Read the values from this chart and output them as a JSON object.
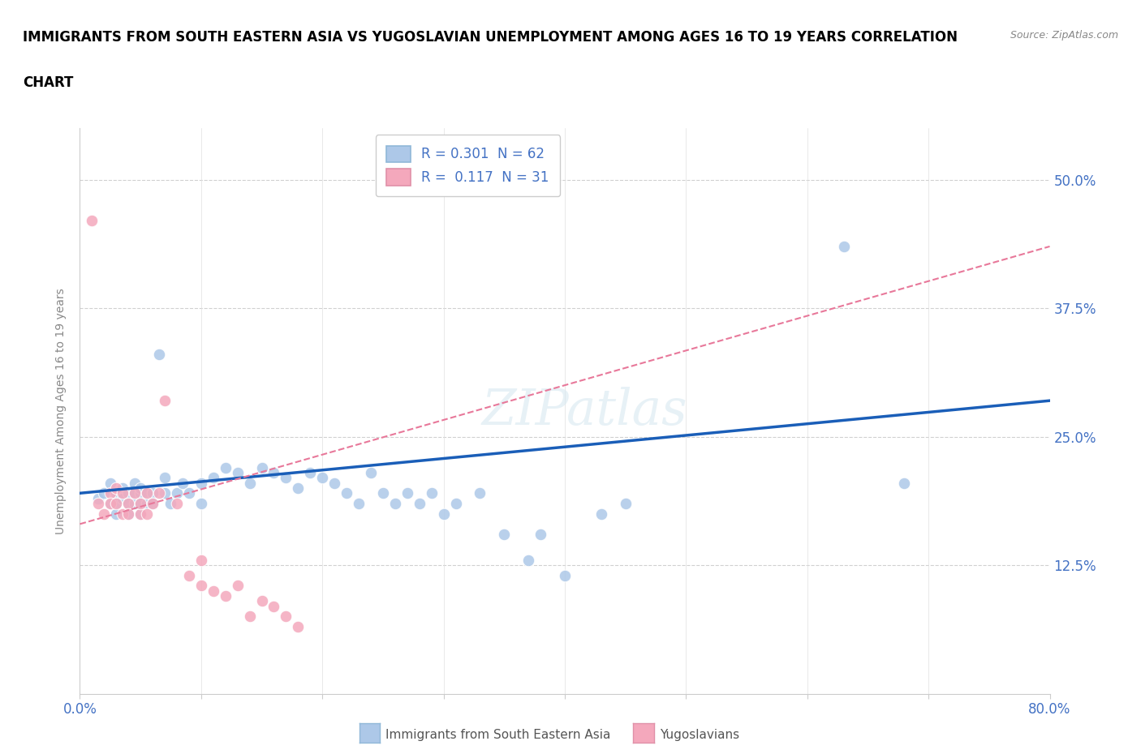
{
  "title": "IMMIGRANTS FROM SOUTH EASTERN ASIA VS YUGOSLAVIAN UNEMPLOYMENT AMONG AGES 16 TO 19 YEARS CORRELATION\nCHART",
  "source_text": "Source: ZipAtlas.com",
  "ylabel": "Unemployment Among Ages 16 to 19 years",
  "xlim": [
    0.0,
    0.8
  ],
  "ylim": [
    0.0,
    0.55
  ],
  "ytick_positions": [
    0.125,
    0.25,
    0.375,
    0.5
  ],
  "ytick_labels": [
    "12.5%",
    "25.0%",
    "37.5%",
    "50.0%"
  ],
  "blue_color": "#adc8e8",
  "pink_color": "#f4a8bc",
  "blue_line_color": "#1a5eb8",
  "pink_line_color": "#e8789a",
  "legend_line1": "R = 0.301  N = 62",
  "legend_line2": "R =  0.117  N = 31",
  "watermark": "ZIPatlas",
  "blue_line_x0": 0.0,
  "blue_line_y0": 0.195,
  "blue_line_x1": 0.8,
  "blue_line_y1": 0.285,
  "pink_line_x0": 0.0,
  "pink_line_y0": 0.165,
  "pink_line_x1": 0.8,
  "pink_line_y1": 0.435,
  "blue_scatter_x": [
    0.015,
    0.02,
    0.025,
    0.025,
    0.03,
    0.03,
    0.03,
    0.035,
    0.035,
    0.04,
    0.04,
    0.04,
    0.045,
    0.045,
    0.045,
    0.05,
    0.05,
    0.05,
    0.05,
    0.055,
    0.055,
    0.06,
    0.06,
    0.065,
    0.07,
    0.07,
    0.075,
    0.08,
    0.085,
    0.09,
    0.1,
    0.1,
    0.11,
    0.12,
    0.13,
    0.14,
    0.15,
    0.16,
    0.17,
    0.18,
    0.19,
    0.2,
    0.21,
    0.22,
    0.23,
    0.24,
    0.25,
    0.26,
    0.27,
    0.28,
    0.29,
    0.3,
    0.31,
    0.33,
    0.35,
    0.37,
    0.38,
    0.4,
    0.43,
    0.45,
    0.63,
    0.68
  ],
  "blue_scatter_y": [
    0.19,
    0.195,
    0.185,
    0.205,
    0.195,
    0.185,
    0.175,
    0.2,
    0.19,
    0.195,
    0.185,
    0.175,
    0.205,
    0.195,
    0.185,
    0.195,
    0.185,
    0.2,
    0.175,
    0.195,
    0.185,
    0.195,
    0.185,
    0.33,
    0.21,
    0.195,
    0.185,
    0.195,
    0.205,
    0.195,
    0.205,
    0.185,
    0.21,
    0.22,
    0.215,
    0.205,
    0.22,
    0.215,
    0.21,
    0.2,
    0.215,
    0.21,
    0.205,
    0.195,
    0.185,
    0.215,
    0.195,
    0.185,
    0.195,
    0.185,
    0.195,
    0.175,
    0.185,
    0.195,
    0.155,
    0.13,
    0.155,
    0.115,
    0.175,
    0.185,
    0.435,
    0.205
  ],
  "pink_scatter_x": [
    0.01,
    0.015,
    0.02,
    0.025,
    0.025,
    0.03,
    0.03,
    0.035,
    0.035,
    0.04,
    0.04,
    0.045,
    0.05,
    0.05,
    0.055,
    0.055,
    0.06,
    0.065,
    0.07,
    0.08,
    0.09,
    0.1,
    0.1,
    0.11,
    0.12,
    0.13,
    0.14,
    0.15,
    0.16,
    0.17,
    0.18
  ],
  "pink_scatter_y": [
    0.46,
    0.185,
    0.175,
    0.195,
    0.185,
    0.2,
    0.185,
    0.195,
    0.175,
    0.185,
    0.175,
    0.195,
    0.175,
    0.185,
    0.195,
    0.175,
    0.185,
    0.195,
    0.285,
    0.185,
    0.115,
    0.105,
    0.13,
    0.1,
    0.095,
    0.105,
    0.075,
    0.09,
    0.085,
    0.075,
    0.065
  ]
}
